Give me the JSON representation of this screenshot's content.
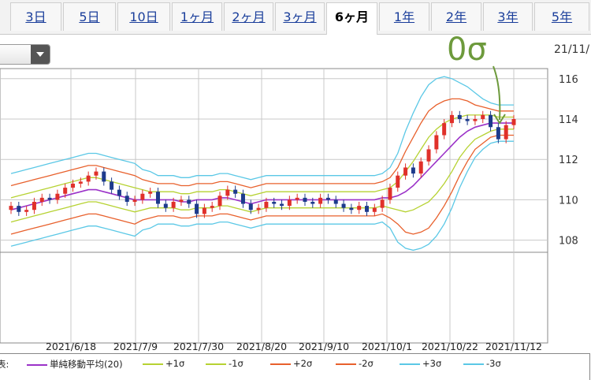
{
  "tabs": [
    {
      "label": "3日",
      "active": false
    },
    {
      "label": "5日",
      "active": false
    },
    {
      "label": "10日",
      "active": false
    },
    {
      "label": "1ヶ月",
      "active": false
    },
    {
      "label": "2ヶ月",
      "active": false
    },
    {
      "label": "3ヶ月",
      "active": false
    },
    {
      "label": "6ヶ月",
      "active": true
    },
    {
      "label": "1年",
      "active": false
    },
    {
      "label": "2年",
      "active": false
    },
    {
      "label": "3年",
      "active": false
    },
    {
      "label": "5年",
      "active": false
    }
  ],
  "date_top": "21/11/",
  "annotation": "0σ",
  "legend_prefix": "表:",
  "colors": {
    "up": "#e0302a",
    "down": "#1d3b8c",
    "ma": "#9b32c8",
    "s1": "#b6d232",
    "s2": "#e8602c",
    "s3": "#5bc8e6",
    "grid": "#c8c8c8",
    "annotation": "#6d9a3c"
  },
  "chart_data": {
    "type": "line",
    "x_tick_labels": [
      "2021/6/18",
      "2021/7/9",
      "2021/7/30",
      "2021/8/20",
      "2021/9/10",
      "2021/10/1",
      "2021/10/22",
      "2021/11/12"
    ],
    "ylim": [
      107.4,
      116.5
    ],
    "yticks": [
      108,
      110,
      112,
      114,
      116
    ],
    "grid": true,
    "legend_position": "bottom",
    "series": [
      {
        "name": "単純移動平均(20)",
        "key": "ma",
        "values": [
          109.5,
          109.6,
          109.7,
          109.8,
          109.9,
          110.0,
          110.1,
          110.2,
          110.3,
          110.4,
          110.5,
          110.5,
          110.4,
          110.3,
          110.2,
          110.1,
          110.0,
          110.0,
          110.0,
          110.0,
          110.0,
          110.0,
          109.9,
          109.9,
          110.0,
          110.0,
          110.0,
          110.1,
          110.1,
          110.0,
          109.9,
          109.8,
          109.9,
          110.0,
          110.0,
          110.0,
          110.0,
          110.0,
          110.0,
          110.0,
          110.0,
          110.0,
          110.0,
          110.0,
          110.0,
          110.0,
          110.0,
          110.0,
          110.1,
          110.1,
          110.2,
          110.4,
          110.7,
          111.1,
          111.5,
          111.9,
          112.3,
          112.7,
          113.1,
          113.4,
          113.6,
          113.7,
          113.8,
          113.8,
          113.8,
          113.8
        ]
      },
      {
        "name": "+1σ",
        "key": "s1",
        "values": [
          110.1,
          110.2,
          110.3,
          110.4,
          110.5,
          110.6,
          110.7,
          110.8,
          110.9,
          111.0,
          111.1,
          111.1,
          111.0,
          110.9,
          110.8,
          110.7,
          110.6,
          110.5,
          110.4,
          110.4,
          110.4,
          110.4,
          110.3,
          110.3,
          110.4,
          110.4,
          110.4,
          110.5,
          110.5,
          110.4,
          110.3,
          110.2,
          110.3,
          110.4,
          110.4,
          110.4,
          110.4,
          110.4,
          110.4,
          110.4,
          110.4,
          110.4,
          110.4,
          110.4,
          110.4,
          110.4,
          110.4,
          110.4,
          110.5,
          110.6,
          110.9,
          111.4,
          111.9,
          112.5,
          113.1,
          113.5,
          113.8,
          114.0,
          114.1,
          114.2,
          114.2,
          114.2,
          114.2,
          114.1,
          114.1,
          114.1
        ]
      },
      {
        "name": "-1σ",
        "key": "s1",
        "values": [
          108.9,
          109.0,
          109.1,
          109.2,
          109.3,
          109.4,
          109.5,
          109.6,
          109.7,
          109.8,
          109.9,
          109.9,
          109.8,
          109.7,
          109.6,
          109.5,
          109.4,
          109.5,
          109.6,
          109.6,
          109.6,
          109.6,
          109.5,
          109.5,
          109.6,
          109.6,
          109.6,
          109.7,
          109.7,
          109.6,
          109.5,
          109.4,
          109.5,
          109.6,
          109.6,
          109.6,
          109.6,
          109.6,
          109.6,
          109.6,
          109.6,
          109.6,
          109.6,
          109.6,
          109.6,
          109.6,
          109.6,
          109.6,
          109.7,
          109.6,
          109.5,
          109.4,
          109.5,
          109.7,
          109.9,
          110.3,
          110.8,
          111.4,
          112.1,
          112.6,
          113.0,
          113.2,
          113.4,
          113.5,
          113.5,
          113.5
        ]
      },
      {
        "name": "+2σ",
        "key": "s2",
        "values": [
          110.7,
          110.8,
          110.9,
          111.0,
          111.1,
          111.2,
          111.3,
          111.4,
          111.5,
          111.6,
          111.7,
          111.7,
          111.6,
          111.5,
          111.4,
          111.3,
          111.2,
          111.0,
          110.9,
          110.8,
          110.8,
          110.8,
          110.7,
          110.7,
          110.8,
          110.8,
          110.8,
          110.9,
          110.9,
          110.8,
          110.7,
          110.6,
          110.7,
          110.8,
          110.8,
          110.8,
          110.8,
          110.8,
          110.8,
          110.8,
          110.8,
          110.8,
          110.8,
          110.8,
          110.8,
          110.8,
          110.8,
          110.8,
          110.9,
          111.1,
          111.6,
          112.4,
          113.1,
          113.8,
          114.4,
          114.7,
          114.9,
          115.0,
          115.0,
          114.9,
          114.7,
          114.6,
          114.5,
          114.4,
          114.4,
          114.4
        ]
      },
      {
        "name": "-2σ",
        "key": "s2",
        "values": [
          108.3,
          108.4,
          108.5,
          108.6,
          108.7,
          108.8,
          108.9,
          109.0,
          109.1,
          109.2,
          109.3,
          109.3,
          109.2,
          109.1,
          109.0,
          108.9,
          108.8,
          109.0,
          109.1,
          109.2,
          109.2,
          109.2,
          109.1,
          109.1,
          109.2,
          109.2,
          109.2,
          109.3,
          109.3,
          109.2,
          109.1,
          109.0,
          109.1,
          109.2,
          109.2,
          109.2,
          109.2,
          109.2,
          109.2,
          109.2,
          109.2,
          109.2,
          109.2,
          109.2,
          109.2,
          109.2,
          109.2,
          109.2,
          109.3,
          109.1,
          108.8,
          108.4,
          108.3,
          108.4,
          108.6,
          109.1,
          109.7,
          110.4,
          111.2,
          111.9,
          112.5,
          112.8,
          113.1,
          113.2,
          113.2,
          113.2
        ]
      },
      {
        "name": "+3σ",
        "key": "s3",
        "values": [
          111.3,
          111.4,
          111.5,
          111.6,
          111.7,
          111.8,
          111.9,
          112.0,
          112.1,
          112.2,
          112.3,
          112.3,
          112.2,
          112.1,
          112.0,
          111.9,
          111.8,
          111.5,
          111.4,
          111.2,
          111.2,
          111.2,
          111.1,
          111.1,
          111.2,
          111.2,
          111.2,
          111.3,
          111.3,
          111.2,
          111.1,
          111.0,
          111.1,
          111.2,
          111.2,
          111.2,
          111.2,
          111.2,
          111.2,
          111.2,
          111.2,
          111.2,
          111.2,
          111.2,
          111.2,
          111.2,
          111.2,
          111.2,
          111.3,
          111.6,
          112.3,
          113.4,
          114.3,
          115.1,
          115.7,
          116.0,
          116.1,
          116.0,
          115.8,
          115.6,
          115.3,
          115.0,
          114.8,
          114.7,
          114.7,
          114.7
        ]
      },
      {
        "name": "-3σ",
        "key": "s3",
        "values": [
          107.7,
          107.8,
          107.9,
          108.0,
          108.1,
          108.2,
          108.3,
          108.4,
          108.5,
          108.6,
          108.7,
          108.7,
          108.6,
          108.5,
          108.4,
          108.3,
          108.2,
          108.5,
          108.6,
          108.8,
          108.8,
          108.8,
          108.7,
          108.7,
          108.8,
          108.8,
          108.8,
          108.9,
          108.9,
          108.8,
          108.7,
          108.6,
          108.7,
          108.8,
          108.8,
          108.8,
          108.8,
          108.8,
          108.8,
          108.8,
          108.8,
          108.8,
          108.8,
          108.8,
          108.8,
          108.8,
          108.8,
          108.8,
          108.9,
          108.6,
          107.9,
          107.6,
          107.5,
          107.6,
          107.8,
          108.2,
          108.8,
          109.6,
          110.6,
          111.4,
          112.1,
          112.5,
          112.8,
          112.9,
          112.9,
          112.9
        ]
      }
    ],
    "candles_close": [
      109.7,
      109.4,
      109.5,
      109.9,
      110.1,
      110.0,
      110.3,
      110.6,
      110.8,
      110.9,
      111.2,
      111.4,
      110.9,
      110.5,
      110.2,
      109.9,
      110.0,
      110.3,
      110.4,
      109.8,
      109.6,
      109.9,
      110.0,
      109.8,
      109.3,
      109.6,
      109.7,
      110.2,
      110.5,
      110.3,
      109.8,
      109.5,
      109.6,
      109.9,
      109.8,
      109.7,
      110.0,
      110.1,
      109.9,
      109.8,
      110.1,
      110.0,
      109.8,
      109.6,
      109.5,
      109.7,
      109.4,
      109.6,
      110.0,
      110.6,
      111.2,
      111.6,
      111.3,
      111.9,
      112.5,
      113.2,
      113.8,
      114.2,
      114.0,
      113.9,
      114.0,
      114.2,
      113.6,
      113.0,
      113.7,
      114.0
    ],
    "candles_open": [
      109.5,
      109.7,
      109.4,
      109.5,
      109.9,
      110.1,
      110.0,
      110.3,
      110.6,
      110.8,
      110.9,
      111.2,
      111.4,
      110.9,
      110.5,
      110.2,
      109.9,
      110.0,
      110.3,
      110.4,
      109.8,
      109.6,
      109.9,
      110.0,
      109.8,
      109.3,
      109.6,
      109.7,
      110.2,
      110.5,
      110.3,
      109.8,
      109.5,
      109.6,
      109.9,
      109.8,
      109.7,
      110.0,
      110.1,
      109.9,
      109.8,
      110.1,
      110.0,
      109.8,
      109.6,
      109.5,
      109.7,
      109.4,
      109.6,
      110.0,
      110.6,
      111.2,
      111.6,
      111.3,
      111.9,
      112.5,
      113.2,
      113.8,
      114.2,
      114.0,
      113.9,
      114.0,
      114.2,
      113.6,
      113.0,
      113.7
    ]
  },
  "legend": [
    {
      "label": "単純移動平均(20)",
      "key": "ma"
    },
    {
      "label": "+1σ",
      "key": "s1"
    },
    {
      "label": "-1σ",
      "key": "s1"
    },
    {
      "label": "+2σ",
      "key": "s2"
    },
    {
      "label": "-2σ",
      "key": "s2"
    },
    {
      "label": "+3σ",
      "key": "s3"
    },
    {
      "label": "-3σ",
      "key": "s3"
    }
  ]
}
